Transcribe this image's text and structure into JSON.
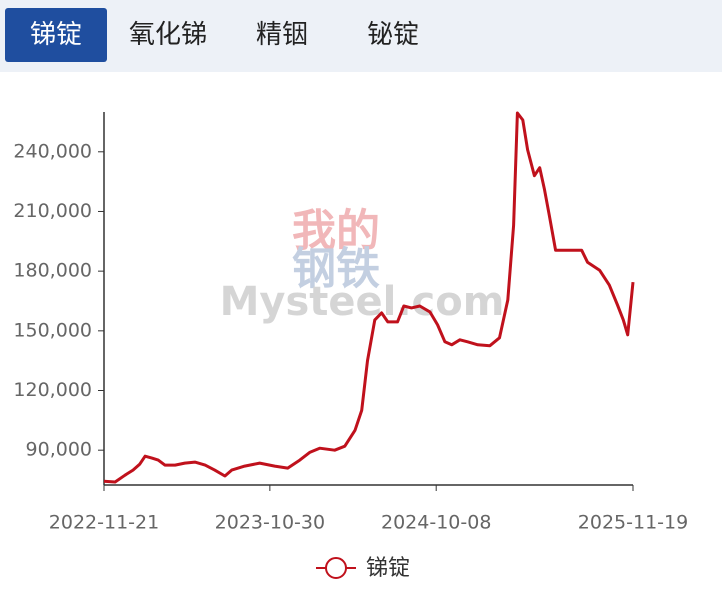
{
  "tabs": [
    "锑锭",
    "氧化锑",
    "精铟",
    "铋锭"
  ],
  "watermark": {
    "line1": "我的",
    "line2": "钢铁",
    "brand": "Mysteel.com"
  },
  "chart_data": {
    "type": "line",
    "x": [
      "2022-11-21",
      "2022-12-14",
      "2023-01-03",
      "2023-01-20",
      "2023-02-03",
      "2023-02-14",
      "2023-02-28",
      "2023-03-13",
      "2023-03-27",
      "2023-04-17",
      "2023-05-07",
      "2023-05-28",
      "2023-06-18",
      "2023-07-08",
      "2023-07-29",
      "2023-08-12",
      "2023-09-08",
      "2023-10-09",
      "2023-11-09",
      "2023-12-06",
      "2023-12-31",
      "2024-01-21",
      "2024-02-10",
      "2024-03-12",
      "2024-04-02",
      "2024-04-23",
      "2024-05-07",
      "2024-05-19",
      "2024-06-03",
      "2024-06-17",
      "2024-06-30",
      "2024-07-20",
      "2024-08-02",
      "2024-08-18",
      "2024-09-04",
      "2024-09-25",
      "2024-10-11",
      "2024-10-26",
      "2024-11-09",
      "2024-11-26",
      "2024-12-12",
      "2025-01-02",
      "2025-01-27",
      "2025-02-16",
      "2025-03-05",
      "2025-03-17",
      "2025-03-25",
      "2025-04-05",
      "2025-04-15",
      "2025-04-29",
      "2025-05-10",
      "2025-05-20",
      "2025-05-30",
      "2025-06-12",
      "2025-06-30",
      "2025-08-05",
      "2025-08-17",
      "2025-09-11",
      "2025-10-01",
      "2025-10-18",
      "2025-10-30",
      "2025-11-08",
      "2025-11-19"
    ],
    "series": [
      {
        "name": "锑锭",
        "color": "#c0111c",
        "values": [
          74400,
          74000,
          77400,
          80000,
          83000,
          87000,
          86000,
          85000,
          82500,
          82500,
          83500,
          84000,
          82500,
          80000,
          77000,
          80000,
          82000,
          83500,
          82000,
          81000,
          85000,
          89000,
          91000,
          90000,
          92000,
          100000,
          110000,
          135000,
          155500,
          159000,
          154500,
          154500,
          162500,
          161500,
          162500,
          159500,
          153000,
          144500,
          143000,
          145500,
          144500,
          143000,
          142500,
          146500,
          165500,
          203000,
          259500,
          256000,
          241000,
          228000,
          232000,
          221000,
          208000,
          190500,
          190500,
          190500,
          184500,
          180500,
          173000,
          163000,
          155500,
          148000,
          174500
        ]
      }
    ],
    "xlim": [
      "2022-11-21",
      "2025-11-19"
    ],
    "xticks": [
      "2022-11-21",
      "2023-10-30",
      "2024-10-08",
      "2025-11-19"
    ],
    "ylim": [
      72500,
      260000
    ],
    "yticks": [
      {
        "value": 90000,
        "label": "90,000"
      },
      {
        "value": 120000,
        "label": "120,000"
      },
      {
        "value": 150000,
        "label": "150,000"
      },
      {
        "value": 180000,
        "label": "180,000"
      },
      {
        "value": 210000,
        "label": "210,000"
      },
      {
        "value": 240000,
        "label": "240,000"
      }
    ]
  }
}
